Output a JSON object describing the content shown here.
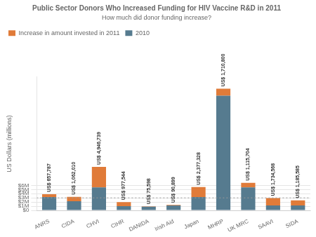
{
  "chart_data": {
    "type": "bar",
    "title": "Public Sector Donors Who Increased Funding for HIV Vaccine R&D in 2011",
    "subtitle": "How much did donor funding increase?",
    "categories": [
      "ANRS",
      "CIDA",
      "CHVI",
      "CIHR",
      "DANIDA",
      "Irish Aid",
      "Japan",
      "MHRP",
      "UK MRC",
      "SAAVI",
      "SIDA"
    ],
    "series": [
      {
        "name": "2010",
        "color": "#567b8f",
        "values": [
          3.2,
          2.2,
          5.5,
          1.0,
          0.9,
          1.2,
          3.2,
          27.5,
          5.5,
          1.2,
          1.2
        ]
      },
      {
        "name": "Increase in amount invested in 2011",
        "color": "#e07b39",
        "values": [
          0.658,
          1.062,
          4.947,
          0.978,
          0.076,
          0.091,
          2.377,
          1.711,
          1.116,
          1.735,
          1.186
        ],
        "value_labels": [
          "US$ 657,787",
          "US$ 1,062,010",
          "US$ 4,946,739",
          "US$ 977,544",
          "US$ 75,598",
          "US$ 90,899",
          "US$ 2,377,328",
          "US$ 1,710,800",
          "US$ 1,115,704",
          "US$ 1,734,568",
          "US$ 1,185,585"
        ]
      }
    ],
    "stacked": true,
    "data_labels": true,
    "ylabel": "US Dollars (millions)",
    "ylim": [
      0,
      32
    ],
    "yticks": [
      {
        "value": 0,
        "label": "$0"
      },
      {
        "value": 1,
        "label": "$1M"
      },
      {
        "value": 2,
        "label": "$2M"
      },
      {
        "value": 3,
        "label": "$3M"
      },
      {
        "value": 4,
        "label": "$4M"
      },
      {
        "value": 5,
        "label": "$5M"
      },
      {
        "value": 6,
        "label": "$6M"
      }
    ],
    "grid": true,
    "legend": "upper left",
    "hline": {
      "value": 3.0,
      "color": "#999999",
      "line_style": "dotted"
    }
  }
}
